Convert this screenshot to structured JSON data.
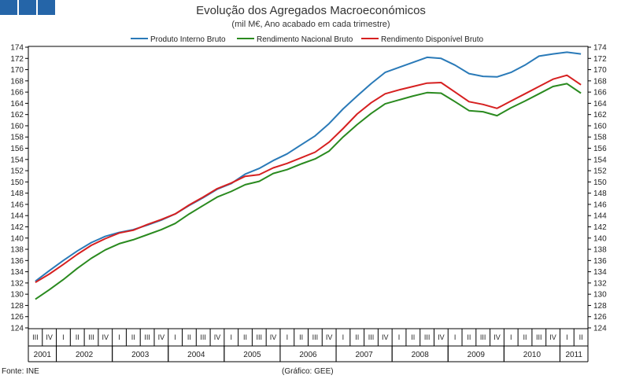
{
  "chart_data": {
    "type": "line",
    "title": "Evolução dos Agregados Macroeconómicos",
    "subtitle": "(mil M€, Ano acabado em cada trimestre)",
    "ylim": [
      124,
      174
    ],
    "ytick_step": 2,
    "quarters": [
      "III",
      "IV",
      "I",
      "II",
      "III",
      "IV",
      "I",
      "II",
      "III",
      "IV",
      "I",
      "II",
      "III",
      "IV",
      "I",
      "II",
      "III",
      "IV",
      "I",
      "II",
      "III",
      "IV",
      "I",
      "II",
      "III",
      "IV",
      "I",
      "II",
      "III",
      "IV",
      "I",
      "II",
      "III",
      "IV",
      "I",
      "II",
      "III",
      "IV",
      "I",
      "II"
    ],
    "years": [
      {
        "label": "2001",
        "start": 0,
        "count": 2
      },
      {
        "label": "2002",
        "start": 2,
        "count": 4
      },
      {
        "label": "2003",
        "start": 6,
        "count": 4
      },
      {
        "label": "2004",
        "start": 10,
        "count": 4
      },
      {
        "label": "2005",
        "start": 14,
        "count": 4
      },
      {
        "label": "2006",
        "start": 18,
        "count": 4
      },
      {
        "label": "2007",
        "start": 22,
        "count": 4
      },
      {
        "label": "2008",
        "start": 26,
        "count": 4
      },
      {
        "label": "2009",
        "start": 30,
        "count": 4
      },
      {
        "label": "2010",
        "start": 34,
        "count": 4
      },
      {
        "label": "2011",
        "start": 38,
        "count": 2
      }
    ],
    "series": [
      {
        "name": "Produto Interno Bruto",
        "color": "#2a7ab8",
        "values": [
          132.3,
          134.2,
          136.0,
          137.7,
          139.2,
          140.3,
          141.0,
          141.5,
          142.3,
          143.2,
          144.3,
          145.8,
          147.2,
          148.7,
          149.7,
          151.4,
          152.4,
          153.8,
          155.0,
          156.6,
          158.2,
          160.4,
          163.0,
          165.3,
          167.5,
          169.5,
          170.4,
          171.3,
          172.2,
          172.0,
          170.8,
          169.3,
          168.8,
          168.7,
          169.5,
          170.8,
          172.4,
          172.8,
          173.1,
          172.8
        ]
      },
      {
        "name": "Rendimento Nacional Bruto",
        "color": "#2a8a1f",
        "values": [
          129.1,
          130.8,
          132.6,
          134.6,
          136.4,
          137.9,
          139.0,
          139.7,
          140.6,
          141.5,
          142.6,
          144.3,
          145.8,
          147.3,
          148.3,
          149.5,
          150.1,
          151.5,
          152.2,
          153.2,
          154.1,
          155.5,
          158.0,
          160.2,
          162.2,
          163.9,
          164.6,
          165.3,
          165.9,
          165.8,
          164.3,
          162.7,
          162.5,
          161.8,
          163.2,
          164.4,
          165.7,
          167.0,
          167.5,
          165.8
        ]
      },
      {
        "name": "Rendimento Disponível Bruto",
        "color": "#d62020",
        "values": [
          132.1,
          133.6,
          135.3,
          137.1,
          138.7,
          139.9,
          140.9,
          141.4,
          142.4,
          143.3,
          144.3,
          145.9,
          147.3,
          148.8,
          149.8,
          151.0,
          151.3,
          152.5,
          153.3,
          154.3,
          155.3,
          157.1,
          159.5,
          162.1,
          164.1,
          165.7,
          166.4,
          167.0,
          167.6,
          167.7,
          166.0,
          164.3,
          163.8,
          163.1,
          164.4,
          165.7,
          167.0,
          168.3,
          169.0,
          167.3
        ]
      }
    ]
  },
  "footer": {
    "source": "Fonte: INE",
    "credit": "(Gráfico: GEE)"
  },
  "colors": {
    "logo": "#2565a8",
    "axis": "#000000"
  }
}
